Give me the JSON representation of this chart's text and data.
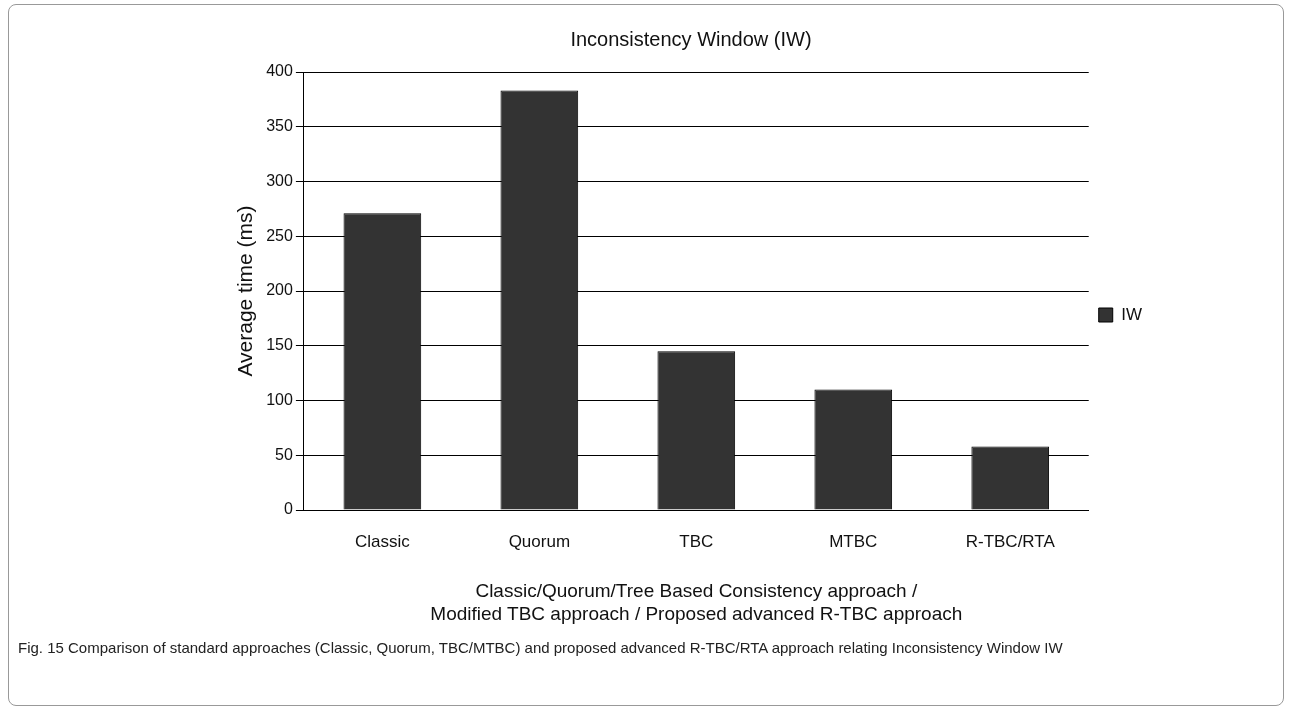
{
  "chart_data": {
    "type": "bar",
    "title": "Inconsistency Window (IW)",
    "xlabel": "Classic/Quorum/Tree Based Consistency approach /\nModified TBC approach / Proposed advanced R-TBC approach",
    "ylabel": "Average time (ms)",
    "categories": [
      "Classic",
      "Quorum",
      "TBC",
      "MTBC",
      "R-TBC/RTA"
    ],
    "series": [
      {
        "name": "IW",
        "color": "#333333",
        "values": [
          271,
          383,
          145,
          110,
          58
        ]
      }
    ],
    "ylim": [
      0,
      400
    ],
    "yticks": [
      0,
      50,
      100,
      150,
      200,
      250,
      300,
      350,
      400
    ],
    "grid": "y",
    "legend": "right",
    "annotations": [
      "Fig. 15 Comparison of standard approaches (Classic, Quorum, TBC/MTBC) and proposed advanced R-TBC/RTA approach relating Inconsistency Window IW"
    ]
  }
}
